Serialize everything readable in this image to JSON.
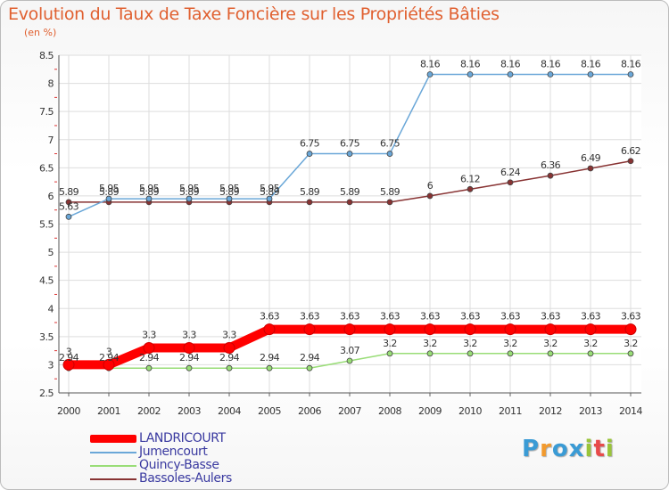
{
  "chart_data": {
    "type": "line",
    "title": "Evolution du Taux de Taxe Foncière sur les Propriétés Bâties",
    "subtitle": "(en %)",
    "x": [
      "2000",
      "2001",
      "2002",
      "2003",
      "2004",
      "2005",
      "2006",
      "2007",
      "2008",
      "2009",
      "2010",
      "2011",
      "2012",
      "2013",
      "2014"
    ],
    "ylim": [
      2.5,
      8.5
    ],
    "yticks": [
      "2.5",
      "3",
      "3.5",
      "4",
      "4.5",
      "5",
      "5.5",
      "6",
      "6.5",
      "7",
      "7.5",
      "8",
      "8.5"
    ],
    "series": [
      {
        "name": "LANDRICOURT",
        "color": "#ff0000",
        "values": [
          3,
          3,
          3.3,
          3.3,
          3.3,
          3.63,
          3.63,
          3.63,
          3.63,
          3.63,
          3.63,
          3.63,
          3.63,
          3.63,
          3.63
        ],
        "labels": [
          "3",
          "3",
          "3.3",
          "3.3",
          "3.3",
          "3.63",
          "3.63",
          "3.63",
          "3.63",
          "3.63",
          "3.63",
          "3.63",
          "3.63",
          "3.63",
          "3.63"
        ]
      },
      {
        "name": "Jumencourt",
        "color": "#6aa7d8",
        "values": [
          5.63,
          5.95,
          5.95,
          5.95,
          5.95,
          5.95,
          6.75,
          6.75,
          6.75,
          8.16,
          8.16,
          8.16,
          8.16,
          8.16,
          8.16
        ],
        "labels": [
          "5.63",
          "5.95",
          "5.95",
          "5.95",
          "5.95",
          "5.95",
          "6.75",
          "6.75",
          "6.75",
          "8.16",
          "8.16",
          "8.16",
          "8.16",
          "8.16",
          "8.16"
        ]
      },
      {
        "name": "Quincy-Basse",
        "color": "#99dd77",
        "values": [
          2.94,
          2.94,
          2.94,
          2.94,
          2.94,
          2.94,
          2.94,
          3.07,
          3.2,
          3.2,
          3.2,
          3.2,
          3.2,
          3.2,
          3.2
        ],
        "labels": [
          "2.94",
          "2.94",
          "2.94",
          "2.94",
          "2.94",
          "2.94",
          "2.94",
          "3.07",
          "3.2",
          "3.2",
          "3.2",
          "3.2",
          "3.2",
          "3.2",
          "3.2"
        ]
      },
      {
        "name": "Bassoles-Aulers",
        "color": "#883333",
        "values": [
          5.89,
          5.89,
          5.89,
          5.89,
          5.89,
          5.89,
          5.89,
          5.89,
          5.89,
          6,
          6.12,
          6.24,
          6.36,
          6.49,
          6.62
        ],
        "labels": [
          "5.89",
          "5.89",
          "5.89",
          "5.89",
          "5.89",
          "5.89",
          "5.89",
          "5.89",
          "5.89",
          "6",
          "6.12",
          "6.24",
          "6.36",
          "6.49",
          "6.62"
        ]
      }
    ]
  },
  "logo": {
    "letters": [
      "P",
      "r",
      "o",
      "x",
      "i",
      "t",
      "i"
    ],
    "colors": [
      "#3a9bd5",
      "#f29a2e",
      "#3a9bd5",
      "#3a9bd5",
      "#9ac43a",
      "#e84a4a",
      "#9ac43a"
    ]
  }
}
